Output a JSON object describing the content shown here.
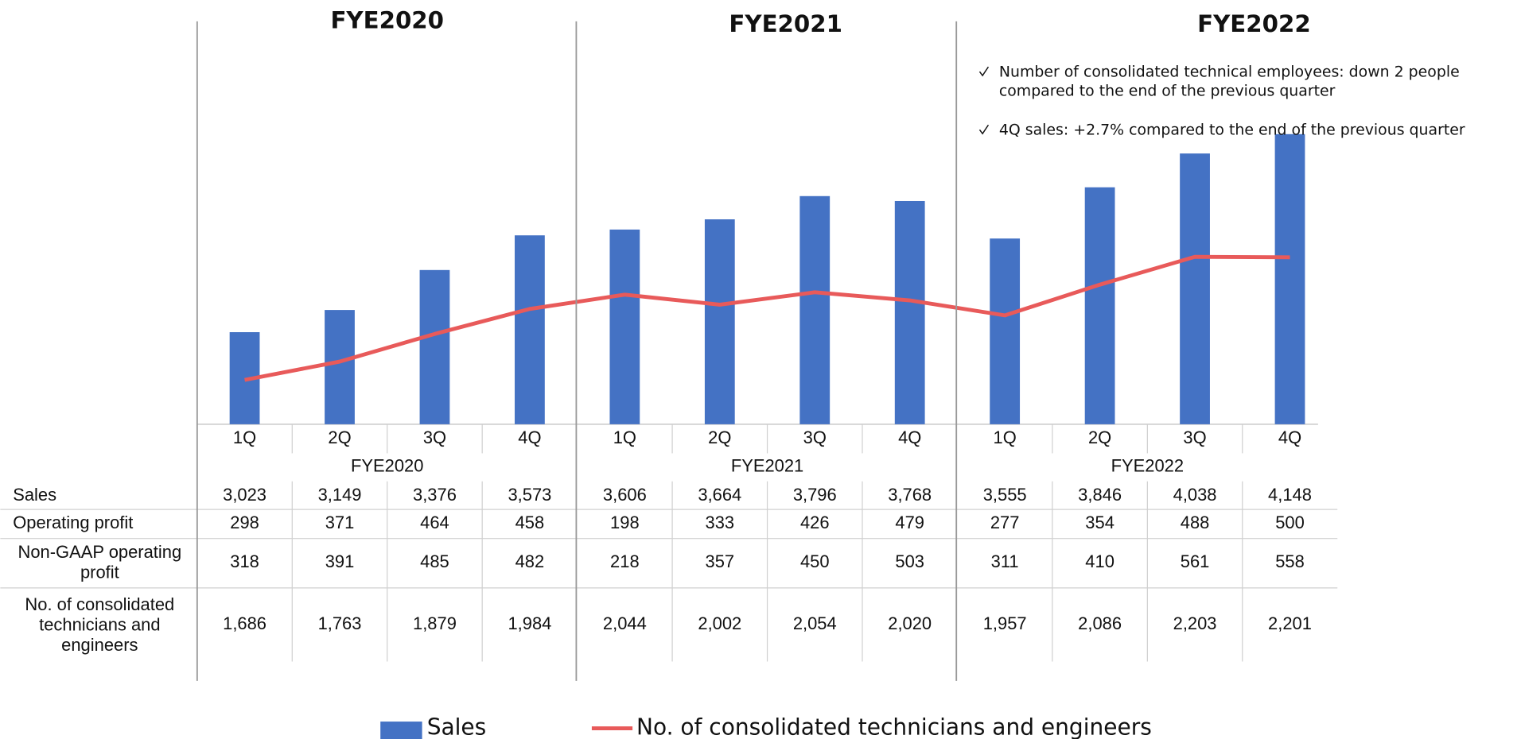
{
  "chart_data": {
    "type": "bar",
    "groups": [
      "FYE2020",
      "FYE2021",
      "FYE2022"
    ],
    "categories": [
      "1Q",
      "2Q",
      "3Q",
      "4Q",
      "1Q",
      "2Q",
      "3Q",
      "4Q",
      "1Q",
      "2Q",
      "3Q",
      "4Q"
    ],
    "series": [
      {
        "name": "Sales",
        "type": "bar",
        "color": "#4472c4",
        "values": [
          3023,
          3149,
          3376,
          3573,
          3606,
          3664,
          3796,
          3768,
          3555,
          3846,
          4038,
          4148
        ],
        "value_labels": [
          "3,023",
          "3,149",
          "3,376",
          "3,573",
          "3,606",
          "3,664",
          "3,796",
          "3,768",
          "3,555",
          "3,846",
          "4,038",
          "4,148"
        ]
      },
      {
        "name": "No. of consolidated technicians and engineers",
        "type": "line",
        "axis": "y2",
        "color": "#e85a5a",
        "values": [
          1686,
          1763,
          1879,
          1984,
          2044,
          2002,
          2054,
          2020,
          1957,
          2086,
          2203,
          2201
        ],
        "value_labels": [
          "1,686",
          "1,763",
          "1,879",
          "1,984",
          "2,044",
          "2,002",
          "2,054",
          "2,020",
          "1,957",
          "2,086",
          "2,203",
          "2,201"
        ]
      }
    ],
    "table_rows": [
      {
        "name": "Operating profit",
        "values": [
          298,
          371,
          464,
          458,
          198,
          333,
          426,
          479,
          277,
          354,
          488,
          500
        ]
      },
      {
        "name": "Non-GAAP operating profit",
        "values": [
          318,
          391,
          485,
          482,
          218,
          357,
          450,
          503,
          311,
          410,
          561,
          558
        ]
      }
    ],
    "annotations": [
      "Number of consolidated technical employees: down 2 people compared to the end of the previous quarter",
      "4Q sales: +2.7% compared to the end of the previous quarter"
    ],
    "ylim": [
      2500,
      4800
    ],
    "y2lim": [
      1500,
      3200
    ]
  }
}
